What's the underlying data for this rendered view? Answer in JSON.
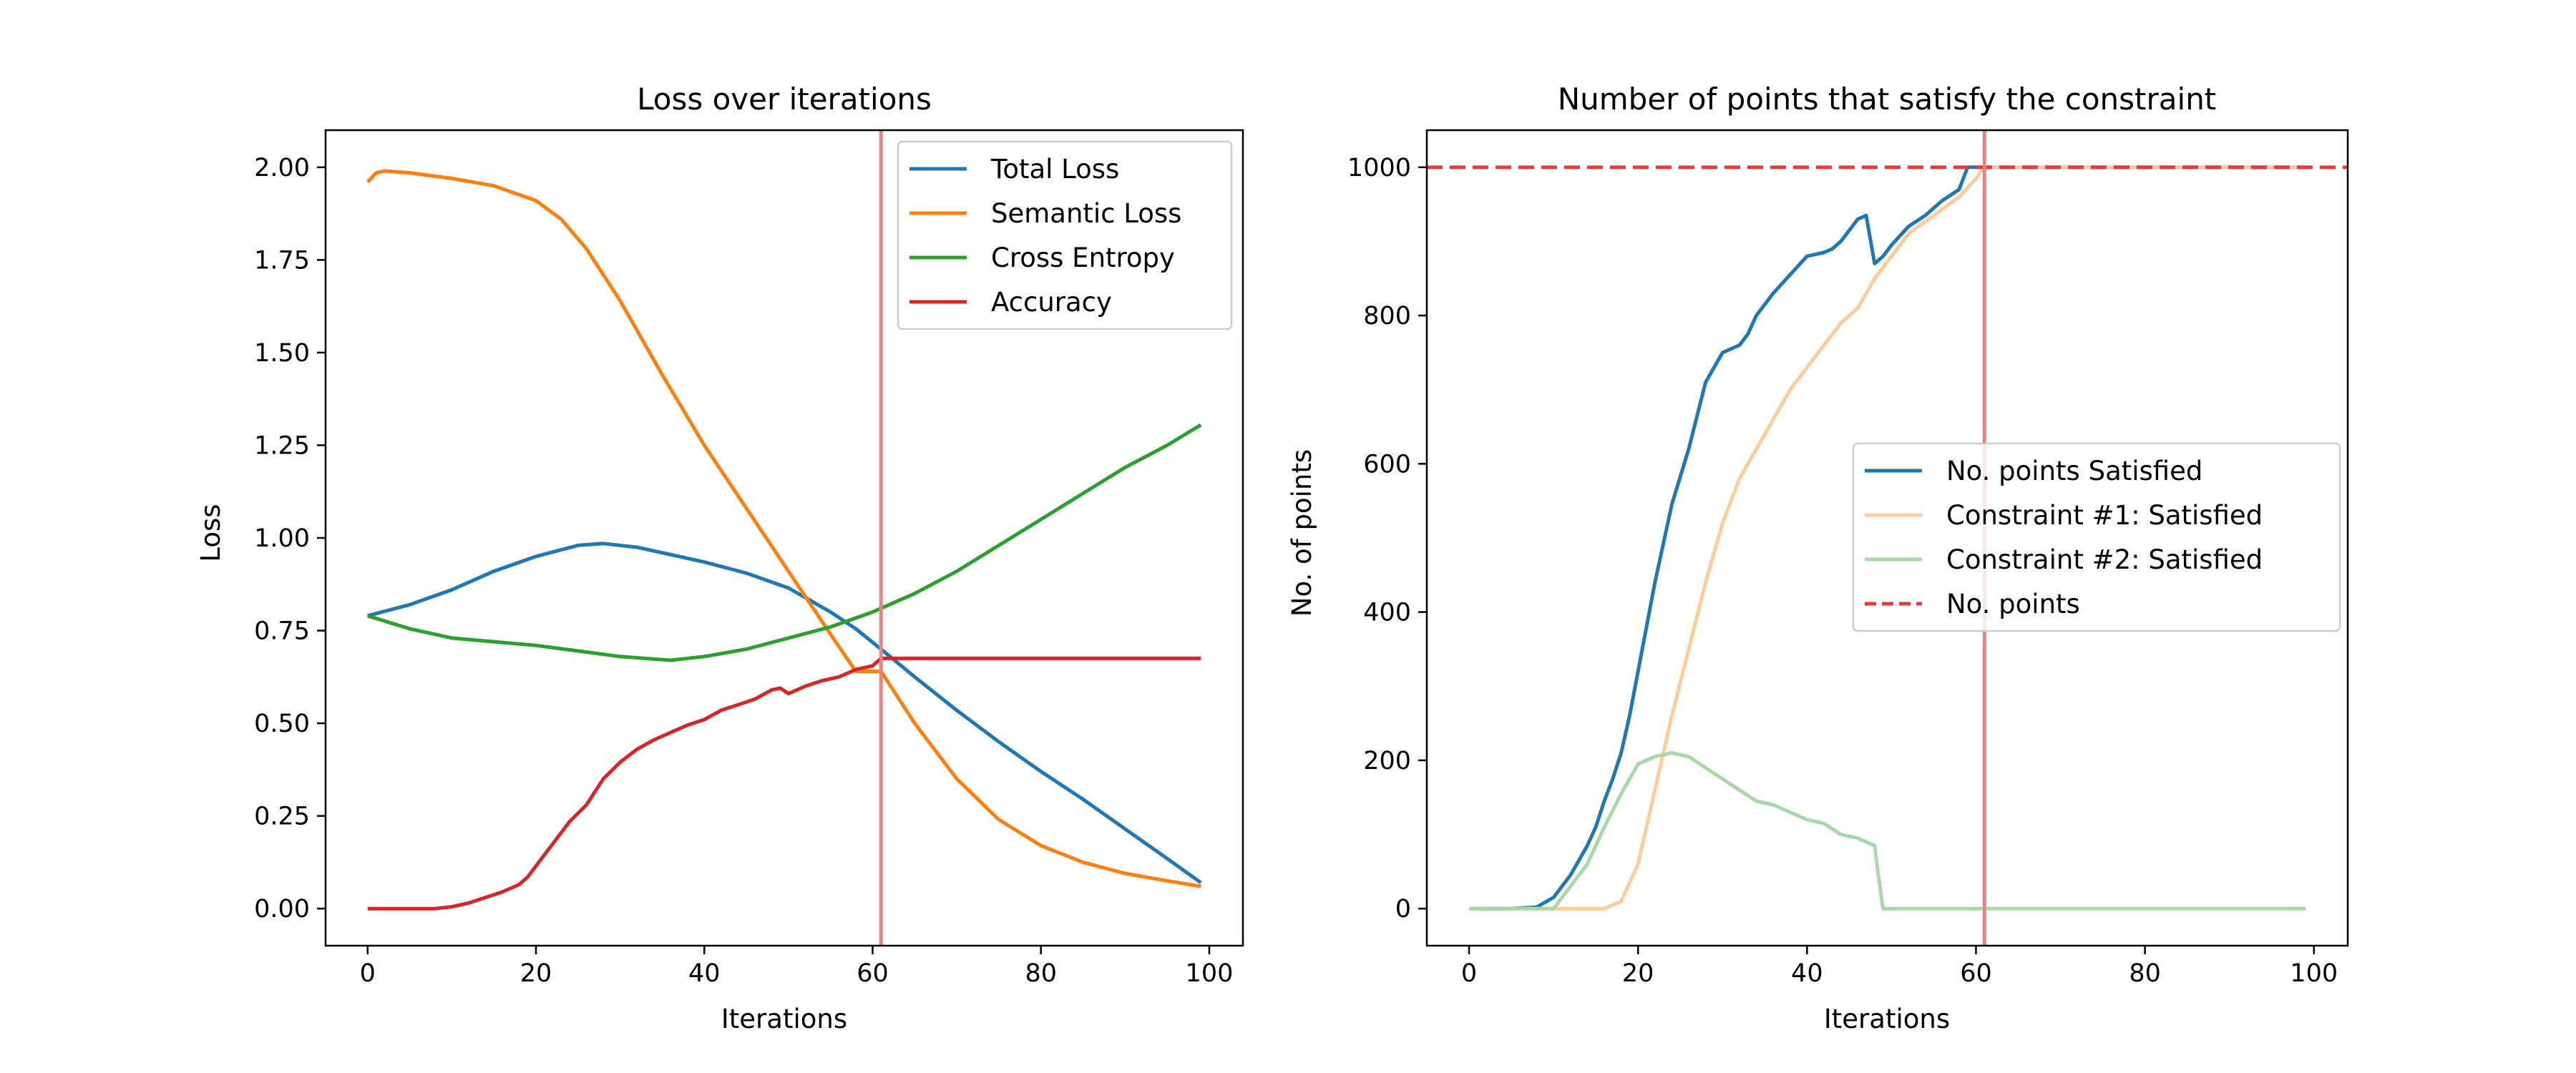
{
  "chart_data": [
    {
      "type": "line",
      "title": "Loss over iterations",
      "xlabel": "Iterations",
      "ylabel": "Loss",
      "xlim": [
        -5,
        104
      ],
      "ylim": [
        -0.1,
        2.1
      ],
      "xticks": [
        0,
        20,
        40,
        60,
        80,
        100
      ],
      "xtick_labels": [
        "0",
        "20",
        "40",
        "60",
        "80",
        "100"
      ],
      "yticks": [
        0,
        0.25,
        0.5,
        0.75,
        1.0,
        1.25,
        1.5,
        1.75,
        2.0
      ],
      "ytick_labels": [
        "0.00",
        "0.25",
        "0.50",
        "0.75",
        "1.00",
        "1.25",
        "1.50",
        "1.75",
        "2.00"
      ],
      "vlines": [
        {
          "x": 61,
          "color": "#f08080"
        }
      ],
      "grid": false,
      "legend_position": "top-right",
      "series": [
        {
          "name": "Total Loss",
          "color": "#1f77b4",
          "dashed": false,
          "alpha": 1,
          "x": [
            0,
            5,
            10,
            15,
            20,
            25,
            28,
            32,
            36,
            40,
            45,
            50,
            55,
            58,
            61,
            65,
            70,
            75,
            80,
            85,
            90,
            95,
            99
          ],
          "y": [
            0.79,
            0.82,
            0.86,
            0.91,
            0.95,
            0.98,
            0.985,
            0.975,
            0.955,
            0.935,
            0.905,
            0.865,
            0.8,
            0.755,
            0.7,
            0.625,
            0.535,
            0.45,
            0.37,
            0.295,
            0.215,
            0.135,
            0.07
          ]
        },
        {
          "name": "Semantic Loss",
          "color": "#ff7f0e",
          "dashed": false,
          "alpha": 1,
          "x": [
            0,
            1,
            2,
            5,
            10,
            15,
            20,
            23,
            26,
            30,
            35,
            40,
            45,
            50,
            55,
            58,
            61,
            65,
            70,
            75,
            80,
            85,
            90,
            95,
            99
          ],
          "y": [
            1.96,
            1.985,
            1.99,
            1.985,
            1.97,
            1.95,
            1.91,
            1.86,
            1.78,
            1.64,
            1.44,
            1.25,
            1.08,
            0.91,
            0.74,
            0.64,
            0.64,
            0.5,
            0.35,
            0.24,
            0.17,
            0.125,
            0.095,
            0.075,
            0.06
          ]
        },
        {
          "name": "Cross Entropy",
          "color": "#2ca02c",
          "dashed": false,
          "alpha": 1,
          "x": [
            0,
            5,
            10,
            15,
            20,
            25,
            30,
            36,
            40,
            45,
            50,
            55,
            60,
            65,
            70,
            75,
            80,
            85,
            90,
            95,
            99
          ],
          "y": [
            0.79,
            0.755,
            0.73,
            0.72,
            0.71,
            0.695,
            0.68,
            0.67,
            0.68,
            0.7,
            0.73,
            0.76,
            0.8,
            0.85,
            0.91,
            0.98,
            1.05,
            1.12,
            1.19,
            1.25,
            1.305
          ]
        },
        {
          "name": "Accuracy",
          "color": "#d62728",
          "dashed": false,
          "alpha": 1,
          "x": [
            0,
            5,
            8,
            10,
            12,
            14,
            16,
            18,
            19,
            20,
            22,
            24,
            26,
            28,
            30,
            32,
            34,
            36,
            38,
            40,
            42,
            44,
            46,
            48,
            49,
            50,
            52,
            54,
            56,
            58,
            60,
            61,
            62,
            65,
            70,
            80,
            90,
            99
          ],
          "y": [
            0.0,
            0.0,
            0.0,
            0.005,
            0.015,
            0.03,
            0.045,
            0.065,
            0.085,
            0.115,
            0.175,
            0.235,
            0.28,
            0.35,
            0.395,
            0.43,
            0.455,
            0.475,
            0.495,
            0.51,
            0.535,
            0.55,
            0.565,
            0.59,
            0.595,
            0.58,
            0.6,
            0.615,
            0.625,
            0.645,
            0.655,
            0.675,
            0.675,
            0.675,
            0.675,
            0.675,
            0.675,
            0.675
          ]
        }
      ]
    },
    {
      "type": "line",
      "title": "Number of points that satisfy the constraint",
      "xlabel": "Iterations",
      "ylabel": "No. of points",
      "xlim": [
        -5,
        104
      ],
      "ylim": [
        -50,
        1050
      ],
      "xticks": [
        0,
        20,
        40,
        60,
        80,
        100
      ],
      "xtick_labels": [
        "0",
        "20",
        "40",
        "60",
        "80",
        "100"
      ],
      "yticks": [
        0,
        200,
        400,
        600,
        800,
        1000
      ],
      "ytick_labels": [
        "0",
        "200",
        "400",
        "600",
        "800",
        "1000"
      ],
      "vlines": [
        {
          "x": 61,
          "color": "#f08080"
        }
      ],
      "hlines": [
        {
          "y": 1000,
          "color": "#e83a3a",
          "dashed": true,
          "label": "No. points"
        }
      ],
      "grid": false,
      "legend_position": "center-right",
      "series": [
        {
          "name": "No. points Satisfied",
          "color": "#1f77b4",
          "dashed": false,
          "alpha": 1,
          "x": [
            0,
            5,
            8,
            10,
            12,
            14,
            15,
            16,
            17,
            18,
            19,
            20,
            21,
            22,
            24,
            26,
            28,
            30,
            32,
            33,
            34,
            36,
            38,
            40,
            42,
            43,
            44,
            46,
            47,
            48,
            49,
            50,
            52,
            54,
            56,
            58,
            59,
            60,
            61,
            63,
            70,
            80,
            90,
            99
          ],
          "y": [
            0,
            0,
            2,
            15,
            45,
            85,
            110,
            145,
            175,
            210,
            260,
            320,
            380,
            440,
            545,
            620,
            710,
            750,
            760,
            775,
            800,
            830,
            855,
            880,
            885,
            890,
            900,
            930,
            935,
            870,
            880,
            895,
            920,
            935,
            955,
            970,
            1000,
            1000,
            1000,
            1000,
            1000,
            1000,
            1000,
            1000
          ]
        },
        {
          "name": "Constraint #1: Satisfied",
          "color": "#ffcc99",
          "dashed": false,
          "alpha": 1,
          "x": [
            0,
            10,
            16,
            18,
            20,
            22,
            24,
            26,
            28,
            30,
            32,
            34,
            36,
            38,
            40,
            42,
            44,
            46,
            48,
            50,
            52,
            55,
            58,
            60,
            61,
            63,
            70,
            80,
            90,
            99
          ],
          "y": [
            0,
            0,
            0,
            10,
            60,
            160,
            260,
            350,
            440,
            520,
            580,
            620,
            660,
            700,
            730,
            760,
            790,
            810,
            850,
            880,
            910,
            935,
            960,
            985,
            1000,
            1000,
            1000,
            1000,
            1000,
            1000
          ]
        },
        {
          "name": "Constraint #2: Satisfied",
          "color": "#a8d8a8",
          "dashed": false,
          "alpha": 1,
          "x": [
            0,
            10,
            14,
            16,
            18,
            20,
            22,
            24,
            26,
            28,
            30,
            32,
            34,
            36,
            38,
            40,
            42,
            44,
            46,
            48,
            48.5,
            49,
            50,
            60,
            70,
            80,
            90,
            99
          ],
          "y": [
            0,
            0,
            60,
            110,
            155,
            195,
            205,
            210,
            205,
            190,
            175,
            160,
            145,
            140,
            130,
            120,
            115,
            100,
            95,
            85,
            40,
            0,
            0,
            0,
            0,
            0,
            0,
            0
          ]
        }
      ]
    }
  ]
}
